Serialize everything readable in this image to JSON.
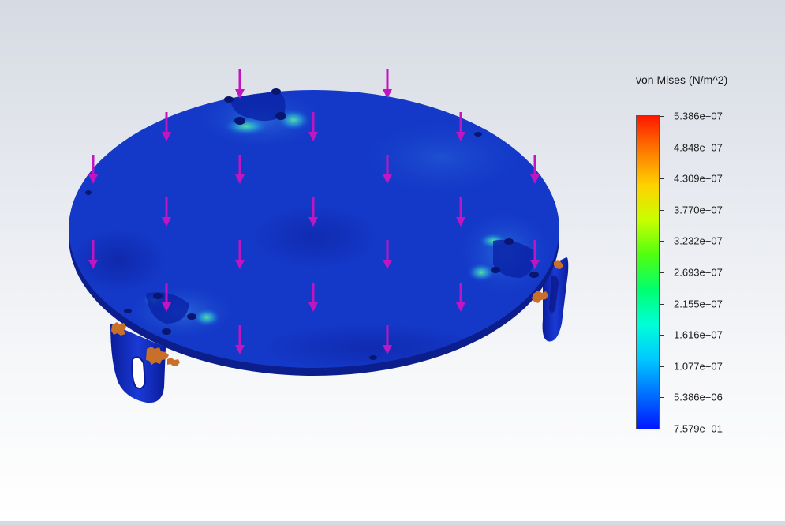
{
  "legend": {
    "title": "von Mises (N/m^2)",
    "labels": [
      "5.386e+07",
      "4.848e+07",
      "4.309e+07",
      "3.770e+07",
      "3.232e+07",
      "2.693e+07",
      "2.155e+07",
      "1.616e+07",
      "1.077e+07",
      "5.386e+06",
      "7.579e+01"
    ],
    "colors": [
      "#ff1800",
      "#ff7a00",
      "#ffd200",
      "#c8ff00",
      "#50ff10",
      "#00ff70",
      "#00ffd8",
      "#00c8ff",
      "#0070ff",
      "#0018ff"
    ]
  },
  "model": {
    "plate_color": "#1438c8",
    "load_arrow_color": "#c015c0",
    "fixture_color": "#c8702a",
    "highlight_color": "#3cd8a0"
  }
}
